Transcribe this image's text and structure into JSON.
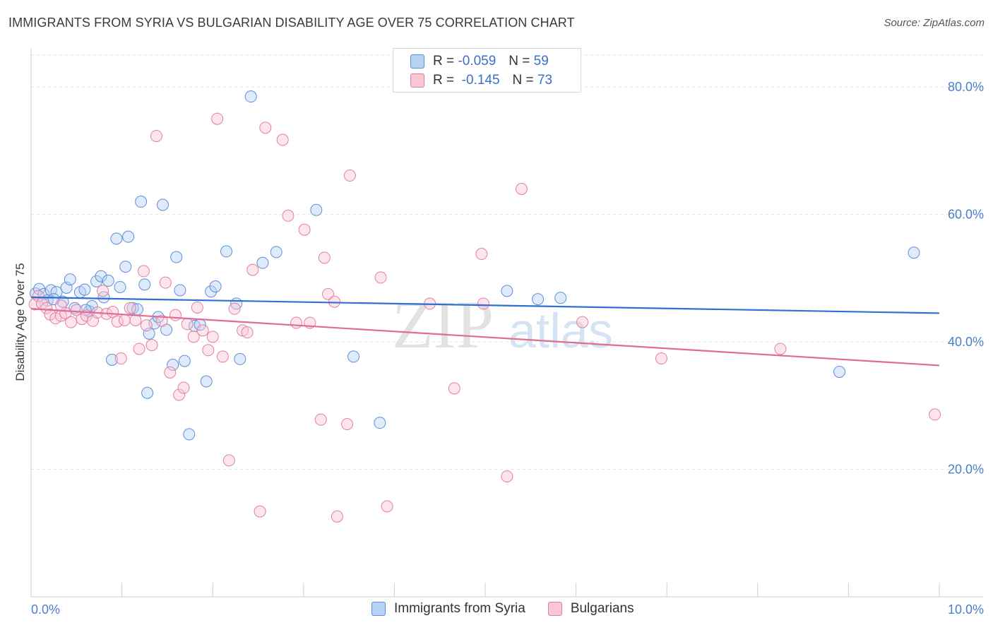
{
  "title": "IMMIGRANTS FROM SYRIA VS BULGARIAN DISABILITY AGE OVER 75 CORRELATION CHART",
  "source": "Source: ZipAtlas.com",
  "watermark": {
    "zip": "ZIP",
    "atlas": "atlas"
  },
  "legend": {
    "r_label": "R =",
    "n_label": "N =",
    "series": [
      {
        "name": "Immigrants from Syria",
        "r": "-0.059",
        "n": "59",
        "fill": "#b8d2f5",
        "stroke": "#5b8fd8"
      },
      {
        "name": "Bulgarians",
        "r": "-0.145",
        "n": "73",
        "fill": "#f9c6d6",
        "stroke": "#e27fa0"
      }
    ]
  },
  "chart_data": {
    "type": "scatter",
    "xlabel": "",
    "ylabel": "Disability Age Over 75",
    "xlim": [
      0,
      10
    ],
    "ylim": [
      0,
      85
    ],
    "x_tick_labels": [
      "0.0%",
      "10.0%"
    ],
    "y_ticks": [
      20,
      40,
      60,
      80
    ],
    "y_tick_labels": [
      "20.0%",
      "40.0%",
      "60.0%",
      "80.0%"
    ],
    "series": [
      {
        "name": "Immigrants from Syria",
        "color": "#5b8fd8",
        "trend": {
          "x0": 0,
          "y0": 47.0,
          "x1": 10,
          "y1": 44.5
        },
        "points": [
          [
            0.05,
            47.6
          ],
          [
            0.09,
            48.3
          ],
          [
            0.14,
            47.5
          ],
          [
            0.18,
            46.5
          ],
          [
            0.22,
            48.1
          ],
          [
            0.28,
            47.8
          ],
          [
            0.35,
            46.3
          ],
          [
            0.39,
            48.5
          ],
          [
            0.43,
            49.8
          ],
          [
            0.48,
            45.3
          ],
          [
            0.54,
            47.8
          ],
          [
            0.59,
            48.2
          ],
          [
            0.64,
            44.8
          ],
          [
            0.67,
            45.6
          ],
          [
            0.72,
            49.5
          ],
          [
            0.77,
            50.3
          ],
          [
            0.8,
            47.0
          ],
          [
            0.85,
            49.6
          ],
          [
            0.98,
            48.6
          ],
          [
            0.89,
            37.2
          ],
          [
            0.94,
            56.2
          ],
          [
            1.04,
            51.8
          ],
          [
            1.07,
            56.5
          ],
          [
            1.12,
            45.3
          ],
          [
            1.17,
            45.1
          ],
          [
            1.21,
            62.0
          ],
          [
            1.25,
            49.0
          ],
          [
            1.3,
            41.3
          ],
          [
            1.36,
            42.9
          ],
          [
            1.4,
            43.9
          ],
          [
            1.45,
            61.5
          ],
          [
            1.49,
            41.9
          ],
          [
            1.56,
            36.4
          ],
          [
            1.6,
            53.3
          ],
          [
            1.64,
            48.1
          ],
          [
            1.69,
            37.0
          ],
          [
            1.74,
            25.5
          ],
          [
            1.8,
            42.5
          ],
          [
            1.86,
            42.7
          ],
          [
            1.93,
            33.8
          ],
          [
            1.98,
            47.9
          ],
          [
            2.03,
            48.7
          ],
          [
            2.15,
            54.2
          ],
          [
            2.26,
            46.0
          ],
          [
            2.3,
            37.3
          ],
          [
            2.42,
            78.5
          ],
          [
            2.55,
            52.4
          ],
          [
            2.7,
            54.1
          ],
          [
            3.14,
            60.7
          ],
          [
            3.55,
            37.7
          ],
          [
            3.84,
            27.3
          ],
          [
            5.24,
            48.0
          ],
          [
            5.58,
            46.7
          ],
          [
            5.83,
            46.9
          ],
          [
            8.9,
            35.3
          ],
          [
            9.72,
            54.0
          ],
          [
            1.28,
            32.0
          ],
          [
            0.6,
            45.0
          ],
          [
            0.25,
            46.7
          ]
        ]
      },
      {
        "name": "Bulgarians",
        "color": "#e27fa0",
        "trend": {
          "x0": 0,
          "y0": 45.2,
          "x1": 10,
          "y1": 36.3
        },
        "points": [
          [
            0.04,
            45.9
          ],
          [
            0.08,
            47.2
          ],
          [
            0.12,
            46.0
          ],
          [
            0.17,
            45.3
          ],
          [
            0.21,
            44.3
          ],
          [
            0.27,
            43.7
          ],
          [
            0.33,
            44.1
          ],
          [
            0.38,
            44.5
          ],
          [
            0.44,
            43.1
          ],
          [
            0.5,
            45.0
          ],
          [
            0.56,
            43.6
          ],
          [
            0.61,
            44.1
          ],
          [
            0.68,
            43.3
          ],
          [
            0.73,
            44.6
          ],
          [
            0.79,
            48.0
          ],
          [
            0.83,
            44.4
          ],
          [
            0.9,
            44.7
          ],
          [
            0.95,
            43.2
          ],
          [
            0.99,
            37.4
          ],
          [
            1.03,
            43.4
          ],
          [
            1.09,
            45.3
          ],
          [
            1.15,
            43.4
          ],
          [
            1.19,
            38.9
          ],
          [
            1.24,
            51.1
          ],
          [
            1.27,
            42.6
          ],
          [
            1.33,
            39.5
          ],
          [
            1.38,
            72.3
          ],
          [
            1.44,
            43.3
          ],
          [
            1.48,
            49.3
          ],
          [
            1.53,
            35.2
          ],
          [
            1.59,
            44.2
          ],
          [
            1.63,
            31.7
          ],
          [
            1.68,
            32.8
          ],
          [
            1.72,
            42.8
          ],
          [
            1.79,
            40.8
          ],
          [
            1.83,
            45.4
          ],
          [
            1.89,
            41.8
          ],
          [
            1.95,
            38.7
          ],
          [
            2.0,
            40.8
          ],
          [
            2.05,
            75.0
          ],
          [
            2.11,
            37.7
          ],
          [
            2.18,
            21.4
          ],
          [
            2.24,
            45.2
          ],
          [
            2.33,
            41.8
          ],
          [
            2.38,
            41.5
          ],
          [
            2.44,
            51.3
          ],
          [
            2.52,
            13.4
          ],
          [
            2.58,
            73.6
          ],
          [
            2.77,
            71.7
          ],
          [
            2.83,
            59.8
          ],
          [
            2.92,
            43.0
          ],
          [
            3.01,
            57.6
          ],
          [
            3.07,
            43.0
          ],
          [
            3.19,
            27.8
          ],
          [
            3.23,
            53.2
          ],
          [
            3.27,
            47.5
          ],
          [
            3.34,
            46.3
          ],
          [
            3.48,
            27.1
          ],
          [
            3.51,
            66.1
          ],
          [
            3.37,
            12.6
          ],
          [
            3.85,
            50.1
          ],
          [
            3.92,
            14.2
          ],
          [
            4.39,
            46.0
          ],
          [
            4.66,
            32.7
          ],
          [
            4.98,
            46.0
          ],
          [
            5.24,
            18.9
          ],
          [
            5.4,
            64.0
          ],
          [
            4.96,
            53.8
          ],
          [
            6.07,
            43.1
          ],
          [
            6.94,
            37.4
          ],
          [
            8.25,
            38.9
          ],
          [
            9.95,
            28.6
          ],
          [
            0.33,
            45.7
          ]
        ]
      }
    ]
  }
}
